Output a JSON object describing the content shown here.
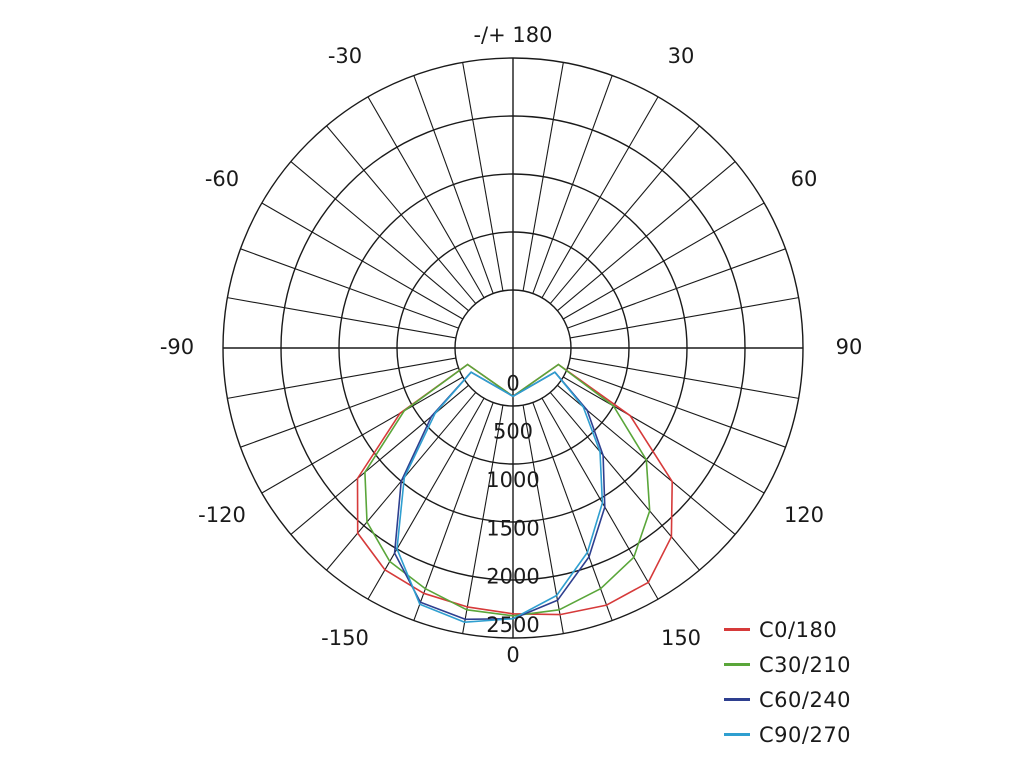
{
  "chart_data": {
    "type": "polar",
    "angle_ticks": [
      {
        "angle": 180,
        "label": "-/+ 180"
      },
      {
        "angle": -150,
        "label": "-150"
      },
      {
        "angle": 150,
        "label": "150"
      },
      {
        "angle": -120,
        "label": "-120"
      },
      {
        "angle": 120,
        "label": "120"
      },
      {
        "angle": -90,
        "label": "-90"
      },
      {
        "angle": 90,
        "label": "90"
      },
      {
        "angle": -60,
        "label": "-60"
      },
      {
        "angle": 60,
        "label": "60"
      },
      {
        "angle": -30,
        "label": "-30"
      },
      {
        "angle": 30,
        "label": "30"
      },
      {
        "angle": 0,
        "label": "0"
      }
    ],
    "radial_ticks": [
      {
        "value": 0,
        "label": "0"
      },
      {
        "value": 500,
        "label": "500"
      },
      {
        "value": 1000,
        "label": "1000"
      },
      {
        "value": 1500,
        "label": "1500"
      },
      {
        "value": 2000,
        "label": "2000"
      },
      {
        "value": 2500,
        "label": "2500"
      }
    ],
    "rlim": [
      -500,
      2500
    ],
    "grid": true,
    "legend_position": "bottom-right",
    "series": [
      {
        "name": "C0/180",
        "color": "#d63a3a",
        "angles": [
          -70,
          -60,
          -50,
          -40,
          -30,
          -20,
          -10,
          0,
          10,
          20,
          30,
          40,
          50,
          60,
          70
        ],
        "values": [
          0,
          900,
          1650,
          2050,
          2300,
          2330,
          2300,
          2250,
          2220,
          2200,
          2150,
          2000,
          1600,
          850,
          0
        ]
      },
      {
        "name": "C30/210",
        "color": "#5aa63a",
        "angles": [
          -70,
          -60,
          -50,
          -40,
          -30,
          -20,
          -10,
          0,
          10,
          20,
          30,
          40,
          50,
          60,
          70
        ],
        "values": [
          0,
          700,
          1300,
          1700,
          2000,
          2150,
          2250,
          2270,
          2250,
          2150,
          2050,
          1850,
          1500,
          800,
          0
        ]
      },
      {
        "name": "C60/240",
        "color": "#2e3f8f",
        "angles": [
          -60,
          -50,
          -40,
          -30,
          -20,
          -10,
          0,
          10,
          20,
          30,
          40,
          50,
          60
        ],
        "values": [
          0,
          500,
          950,
          1400,
          1800,
          2150,
          2300,
          2350,
          2300,
          1950,
          1300,
          600,
          0
        ]
      },
      {
        "name": "C90/270",
        "color": "#2f9fd0",
        "angles": [
          -60,
          -50,
          -40,
          -30,
          -20,
          -10,
          0,
          10,
          20,
          30,
          40,
          50,
          60
        ],
        "values": [
          0,
          450,
          900,
          1350,
          1750,
          2100,
          2300,
          2380,
          2320,
          1900,
          1250,
          550,
          0
        ]
      }
    ]
  }
}
